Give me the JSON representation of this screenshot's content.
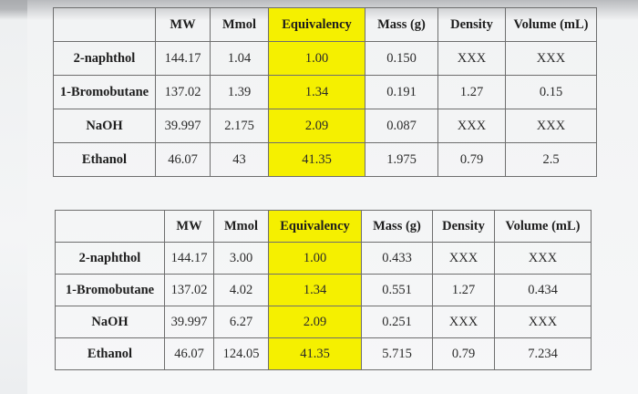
{
  "tables": [
    {
      "headers": [
        "",
        "MW",
        "Mmol",
        "Equivalency",
        "Mass (g)",
        "Density",
        "Volume (mL)"
      ],
      "rows": [
        [
          "2-naphthol",
          "144.17",
          "1.04",
          "1.00",
          "0.150",
          "XXX",
          "XXX"
        ],
        [
          "1-Bromobutane",
          "137.02",
          "1.39",
          "1.34",
          "0.191",
          "1.27",
          "0.15"
        ],
        [
          "NaOH",
          "39.997",
          "2.175",
          "2.09",
          "0.087",
          "XXX",
          "XXX"
        ],
        [
          "Ethanol",
          "46.07",
          "43",
          "41.35",
          "1.975",
          "0.79",
          "2.5"
        ]
      ]
    },
    {
      "headers": [
        "",
        "MW",
        "Mmol",
        "Equivalency",
        "Mass (g)",
        "Density",
        "Volume (mL)"
      ],
      "rows": [
        [
          "2-naphthol",
          "144.17",
          "3.00",
          "1.00",
          "0.433",
          "XXX",
          "XXX"
        ],
        [
          "1-Bromobutane",
          "137.02",
          "4.02",
          "1.34",
          "0.551",
          "1.27",
          "0.434"
        ],
        [
          "NaOH",
          "39.997",
          "6.27",
          "2.09",
          "0.251",
          "XXX",
          "XXX"
        ],
        [
          "Ethanol",
          "46.07",
          "124.05",
          "41.35",
          "5.715",
          "0.79",
          "7.234"
        ]
      ]
    }
  ],
  "colors": {
    "equivalency_highlight": "#f5f000",
    "border": "#6e6e6e"
  }
}
